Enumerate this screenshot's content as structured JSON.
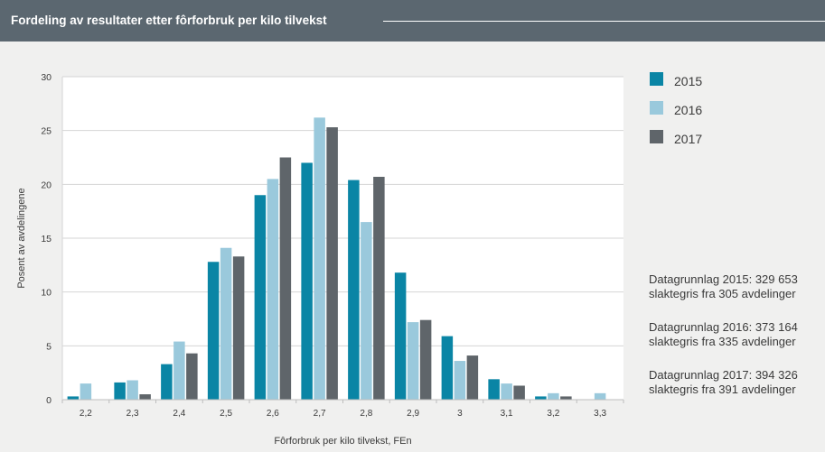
{
  "header": {
    "title": "Fordeling av resultater etter fôrforbruk per kilo tilvekst"
  },
  "colors": {
    "header_bg": "#5b6770",
    "page_bg": "#f0f0ef",
    "plot_bg": "#ffffff",
    "grid": "#d5d5d5",
    "text": "#3a3a3a"
  },
  "chart_data": {
    "type": "bar",
    "title": "Fordeling av resultater etter fôrforbruk per kilo tilvekst",
    "xlabel": "Fôrforbruk per kilo tilvekst, FEn",
    "ylabel": "Posent av avdelingene",
    "ylim": [
      0,
      30
    ],
    "yticks": [
      "0",
      "5",
      "10",
      "15",
      "20",
      "25",
      "30"
    ],
    "grid": "horizontal",
    "legend_position": "right",
    "categories": [
      "2,2",
      "2,3",
      "2,4",
      "2,5",
      "2,6",
      "2,7",
      "2,8",
      "2,9",
      "3",
      "3,1",
      "3,2",
      "3,3"
    ],
    "series": [
      {
        "name": "2015",
        "color": "#0a85a5",
        "values": [
          0.3,
          1.6,
          3.3,
          12.8,
          19.0,
          22.0,
          20.4,
          11.8,
          5.9,
          1.9,
          0.3,
          0.0
        ]
      },
      {
        "name": "2016",
        "color": "#9ac9dc",
        "values": [
          1.5,
          1.8,
          5.4,
          14.1,
          20.5,
          26.2,
          16.5,
          7.2,
          3.6,
          1.5,
          0.6,
          0.6
        ]
      },
      {
        "name": "2017",
        "color": "#5f656a",
        "values": [
          0.0,
          0.5,
          4.3,
          13.3,
          22.5,
          25.3,
          20.7,
          7.4,
          4.1,
          1.3,
          0.3,
          0.0
        ]
      }
    ]
  },
  "notes": [
    {
      "line1": "Datagrunnlag 2015: 329 653",
      "line2": "slaktegris fra 305 avdelinger"
    },
    {
      "line1": "Datagrunnlag 2016: 373 164",
      "line2": "slaktegris fra 335 avdelinger"
    },
    {
      "line1": "Datagrunnlag 2017: 394 326",
      "line2": "slaktegris fra 391 avdelinger"
    }
  ]
}
